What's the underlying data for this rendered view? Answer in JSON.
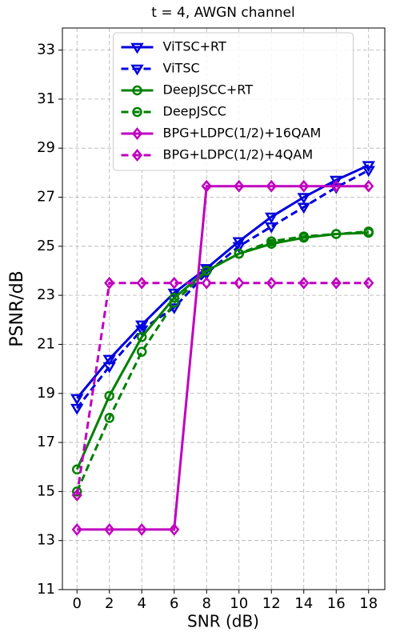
{
  "chart_data": {
    "type": "line",
    "title": "t = 4, AWGN channel",
    "x_label": "SNR (dB)",
    "y_label": "PSNR/dB",
    "x": [
      0,
      2,
      4,
      6,
      8,
      10,
      12,
      14,
      16,
      18
    ],
    "xlim": [
      -0.9,
      19
    ],
    "xticks": [
      0,
      2,
      4,
      6,
      8,
      10,
      12,
      14,
      16,
      18
    ],
    "ylim": [
      11,
      33.9
    ],
    "yticks": [
      11,
      13,
      15,
      17,
      19,
      21,
      23,
      25,
      27,
      29,
      31,
      33
    ],
    "grid": true,
    "legend": "upper center",
    "series": [
      {
        "name": "ViTSC+RT",
        "color": "#0000dd",
        "dash": false,
        "marker": "triangle-down",
        "values": [
          18.8,
          20.4,
          21.8,
          23.1,
          24.1,
          25.2,
          26.2,
          27.0,
          27.7,
          28.3
        ]
      },
      {
        "name": "ViTSC",
        "color": "#0000dd",
        "dash": true,
        "marker": "triangle-down",
        "values": [
          18.4,
          20.1,
          21.6,
          22.5,
          23.9,
          25.0,
          25.8,
          26.6,
          27.4,
          28.1
        ]
      },
      {
        "name": "DeepJSCC+RT",
        "color": "#008000",
        "dash": false,
        "marker": "circle",
        "values": [
          15.9,
          18.9,
          21.3,
          22.9,
          24.0,
          24.7,
          25.1,
          25.35,
          25.5,
          25.55
        ]
      },
      {
        "name": "DeepJSCC",
        "color": "#008000",
        "dash": true,
        "marker": "circle",
        "values": [
          15.0,
          18.0,
          20.7,
          22.7,
          24.0,
          24.7,
          25.2,
          25.4,
          25.5,
          25.6
        ]
      },
      {
        "name": "BPG+LDPC(1/2)+16QAM",
        "color": "#c000c0",
        "dash": false,
        "marker": "diamond",
        "values": [
          13.45,
          13.45,
          13.45,
          13.45,
          27.45,
          27.45,
          27.45,
          27.45,
          27.45,
          27.45
        ]
      },
      {
        "name": "BPG+LDPC(1/2)+4QAM",
        "color": "#c000c0",
        "dash": true,
        "marker": "diamond",
        "values": [
          14.85,
          23.5,
          23.5,
          23.5,
          23.5,
          23.5,
          23.5,
          23.5,
          23.5,
          23.5
        ]
      }
    ]
  }
}
